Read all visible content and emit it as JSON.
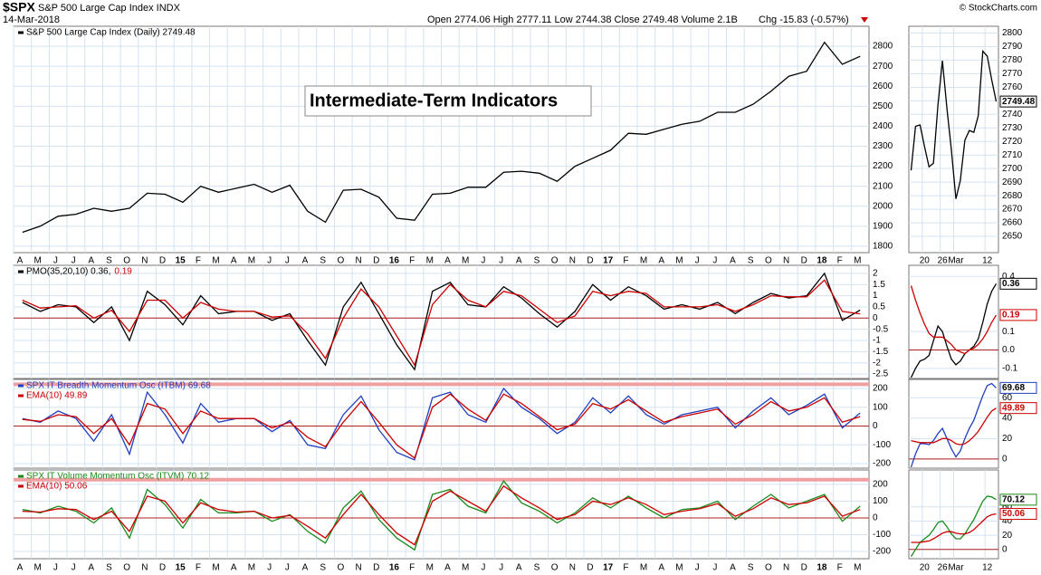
{
  "header": {
    "symbol": "$SPX",
    "name": "S&P 500 Large Cap Index INDX",
    "date": "14-Mar-2018",
    "ohlc": "Open 2774.06 High 2777.11 Low 2744.38 Close 2749.48 Volume 2.1B",
    "change": "Chg -15.83 (-0.57%)",
    "source": "© StockCharts.com",
    "annotation": "Intermediate-Term Indicators"
  },
  "chart_data": [
    {
      "type": "line",
      "categories": [
        "A",
        "M",
        "J",
        "J",
        "A",
        "S",
        "O",
        "N",
        "D",
        "15",
        "F",
        "M",
        "A",
        "M",
        "J",
        "J",
        "A",
        "S",
        "O",
        "N",
        "D",
        "16",
        "F",
        "M",
        "A",
        "M",
        "J",
        "J",
        "A",
        "S",
        "O",
        "N",
        "D",
        "17",
        "F",
        "M",
        "A",
        "M",
        "J",
        "J",
        "A",
        "S",
        "O",
        "N",
        "D",
        "18",
        "F",
        "M"
      ],
      "series": [
        {
          "name": "S&P 500 Large Cap Index (Daily) 2749.48",
          "color": "#000000",
          "values": [
            1870,
            1900,
            1950,
            1960,
            1990,
            1975,
            1990,
            2065,
            2060,
            2020,
            2100,
            2070,
            2090,
            2110,
            2070,
            2105,
            1975,
            1920,
            2080,
            2085,
            2045,
            1940,
            1930,
            2060,
            2065,
            2095,
            2095,
            2170,
            2175,
            2165,
            2125,
            2200,
            2240,
            2280,
            2365,
            2360,
            2385,
            2410,
            2425,
            2470,
            2470,
            2510,
            2575,
            2650,
            2675,
            2820,
            2710,
            2749.48
          ]
        }
      ],
      "ylim": [
        1768,
        2900
      ],
      "yticks": [
        1800,
        1900,
        2000,
        2100,
        2200,
        2300,
        2400,
        2500,
        2600,
        2700,
        2800
      ],
      "grid": true
    },
    {
      "type": "line",
      "series": [
        {
          "name": "PMO(35,20,10) 0.36,",
          "color": "#000000",
          "values": [
            0.7,
            0.3,
            0.6,
            0.5,
            -0.2,
            0.5,
            -1.0,
            1.2,
            0.6,
            -0.3,
            1.0,
            0.2,
            0.3,
            0.3,
            -0.1,
            0.2,
            -1.0,
            -2.1,
            0.5,
            1.6,
            0.2,
            -1.2,
            -2.3,
            1.2,
            1.6,
            0.6,
            0.5,
            1.4,
            0.9,
            0.2,
            -0.4,
            0.3,
            1.5,
            0.8,
            1.4,
            1.0,
            0.4,
            0.6,
            0.4,
            0.7,
            0.2,
            0.7,
            1.1,
            0.9,
            1.0,
            2.0,
            -0.1,
            0.36
          ]
        },
        {
          "name": "0.19",
          "color": "#cc0000",
          "values": [
            0.8,
            0.45,
            0.5,
            0.55,
            0.0,
            0.35,
            -0.6,
            0.8,
            0.8,
            0.0,
            0.7,
            0.4,
            0.3,
            0.3,
            0.05,
            0.1,
            -0.7,
            -1.8,
            0.0,
            1.3,
            0.5,
            -0.8,
            -2.1,
            0.6,
            1.5,
            0.8,
            0.5,
            1.2,
            1.0,
            0.4,
            -0.2,
            0.1,
            1.2,
            1.0,
            1.2,
            1.1,
            0.5,
            0.5,
            0.5,
            0.6,
            0.3,
            0.6,
            1.0,
            0.95,
            0.95,
            1.7,
            0.3,
            0.19
          ]
        }
      ],
      "ylim": [
        -2.7,
        2.36
      ],
      "yticks": [
        -2.5,
        -2,
        -1.5,
        -1,
        -0.5,
        0,
        0.5,
        1,
        1.5,
        2
      ],
      "grid": true,
      "hlines": [
        0
      ]
    },
    {
      "type": "line",
      "series": [
        {
          "name": "SPX IT Breadth Momentum Osc (ITBM) 69.68",
          "color": "#1f3fbf",
          "values": [
            40,
            20,
            80,
            40,
            -80,
            60,
            -150,
            180,
            60,
            -90,
            120,
            20,
            40,
            40,
            -30,
            30,
            -100,
            -120,
            60,
            160,
            -20,
            -140,
            -180,
            150,
            180,
            60,
            20,
            200,
            100,
            40,
            -40,
            20,
            150,
            70,
            160,
            60,
            10,
            60,
            80,
            100,
            -10,
            80,
            150,
            60,
            110,
            170,
            -10,
            69.68
          ]
        },
        {
          "name": "EMA(10) 49.89",
          "color": "#cc0000",
          "values": [
            35,
            25,
            60,
            50,
            -40,
            40,
            -100,
            120,
            90,
            -40,
            80,
            40,
            40,
            40,
            -10,
            20,
            -60,
            -110,
            20,
            130,
            20,
            -100,
            -170,
            100,
            170,
            90,
            30,
            170,
            120,
            50,
            -20,
            10,
            120,
            90,
            140,
            80,
            20,
            50,
            70,
            90,
            10,
            60,
            130,
            80,
            100,
            150,
            20,
            49.89
          ]
        }
      ],
      "ylim": [
        -224,
        248
      ],
      "yticks": [
        -200,
        -100,
        0,
        100,
        200
      ],
      "grid": true,
      "hlines": [
        0,
        222
      ]
    },
    {
      "type": "line",
      "categories": [
        "A",
        "M",
        "J",
        "J",
        "A",
        "S",
        "O",
        "N",
        "D",
        "15",
        "F",
        "M",
        "A",
        "M",
        "J",
        "J",
        "A",
        "S",
        "O",
        "N",
        "D",
        "16",
        "F",
        "M",
        "A",
        "M",
        "J",
        "J",
        "A",
        "S",
        "O",
        "N",
        "D",
        "17",
        "F",
        "M",
        "A",
        "M",
        "J",
        "J",
        "A",
        "S",
        "O",
        "N",
        "D",
        "18",
        "F",
        "M"
      ],
      "series": [
        {
          "name": "SPX IT Volume Momentum Osc (ITVM) 70.12",
          "color": "#1a8a1a",
          "values": [
            50,
            30,
            70,
            40,
            -30,
            60,
            -120,
            170,
            80,
            -60,
            110,
            30,
            30,
            40,
            -20,
            20,
            -80,
            -150,
            60,
            160,
            -10,
            -120,
            -190,
            140,
            170,
            70,
            30,
            220,
            90,
            40,
            -30,
            30,
            120,
            60,
            130,
            60,
            0,
            50,
            60,
            100,
            -10,
            70,
            140,
            60,
            100,
            140,
            -20,
            70.12
          ]
        },
        {
          "name": "EMA(10) 50.06",
          "color": "#cc0000",
          "values": [
            40,
            35,
            55,
            50,
            -10,
            40,
            -80,
            130,
            100,
            -30,
            90,
            50,
            35,
            40,
            0,
            15,
            -50,
            -120,
            20,
            140,
            20,
            -90,
            -160,
            100,
            160,
            100,
            40,
            190,
            120,
            60,
            -10,
            20,
            100,
            80,
            120,
            80,
            20,
            40,
            55,
            85,
            10,
            55,
            120,
            80,
            90,
            130,
            10,
            50.06
          ]
        }
      ],
      "ylim": [
        -243,
        286
      ],
      "yticks": [
        -200,
        -100,
        0,
        100,
        200
      ],
      "grid": true,
      "hlines": [
        0,
        228
      ]
    },
    {
      "type": "line",
      "categories": [
        null,
        null,
        null,
        "20",
        null,
        null,
        null,
        "26",
        null,
        null,
        "Mar",
        null,
        null,
        null,
        null,
        null,
        null,
        "12",
        null,
        null
      ],
      "series": [
        {
          "color": "#000000",
          "values": [
            2698.63,
            2731.2,
            2732.22,
            2716.26,
            2701.33,
            2703.96,
            2747.3,
            2779.6,
            2744.28,
            2713.83,
            2677.67,
            2691.25,
            2720.94,
            2728.12,
            2726.8,
            2738.97,
            2786.57,
            2783.02,
            2765.31,
            2749.48
          ]
        }
      ],
      "ylim": [
        2638,
        2805
      ],
      "yticks": [
        2650,
        2660,
        2670,
        2680,
        2690,
        2700,
        2710,
        2720,
        2730,
        2740,
        2750,
        2760,
        2770,
        2780,
        2790,
        2800
      ],
      "grid": true
    },
    {
      "type": "line",
      "series": [
        {
          "color": "#000000",
          "values": [
            -0.15,
            -0.1,
            -0.06,
            -0.05,
            -0.03,
            0.05,
            0.13,
            0.1,
            0.02,
            -0.05,
            -0.08,
            -0.06,
            -0.02,
            0.0,
            0.02,
            0.06,
            0.15,
            0.25,
            0.32,
            0.36
          ]
        },
        {
          "color": "#cc0000",
          "values": [
            0.35,
            0.27,
            0.2,
            0.14,
            0.09,
            0.07,
            0.07,
            0.07,
            0.05,
            0.03,
            0.0,
            -0.01,
            -0.02,
            0.0,
            0.01,
            0.03,
            0.06,
            0.1,
            0.15,
            0.19
          ]
        }
      ],
      "ylim": [
        -0.155,
        0.46
      ],
      "yticks": [
        0.4,
        0.1,
        {
          "value": 0,
          "label": "0.0"
        },
        -0.1
      ],
      "grid": true,
      "hlines": [
        0
      ]
    },
    {
      "type": "line",
      "series": [
        {
          "color": "#1f3fbf",
          "values": [
            -8,
            5,
            15,
            15,
            14,
            18,
            25,
            30,
            20,
            10,
            2,
            8,
            20,
            30,
            38,
            50,
            62,
            72,
            74,
            69.68
          ]
        },
        {
          "color": "#cc0000",
          "values": [
            18,
            17,
            16,
            16,
            16,
            16,
            18,
            20,
            20,
            18,
            15,
            14,
            15,
            18,
            22,
            27,
            34,
            41,
            47,
            49.89
          ]
        }
      ],
      "ylim": [
        -9,
        78
      ],
      "yticks": [
        60,
        40,
        20,
        0
      ],
      "grid": true,
      "hlines": [
        0
      ]
    },
    {
      "type": "line",
      "categories": [
        null,
        null,
        null,
        "20",
        null,
        null,
        null,
        "26",
        null,
        null,
        "Mar",
        null,
        null,
        null,
        null,
        null,
        null,
        "12",
        null,
        null
      ],
      "series": [
        {
          "color": "#1a8a1a",
          "values": [
            -10,
            0,
            10,
            15,
            20,
            28,
            38,
            40,
            32,
            22,
            15,
            15,
            22,
            32,
            42,
            55,
            68,
            75,
            74,
            70.12
          ]
        },
        {
          "color": "#cc0000",
          "values": [
            10,
            10,
            10,
            11,
            12,
            15,
            19,
            23,
            25,
            25,
            23,
            22,
            22,
            24,
            28,
            34,
            40,
            46,
            49,
            50.06
          ]
        }
      ],
      "ylim": [
        -13,
        112
      ],
      "yticks": [
        60,
        40,
        20,
        0
      ],
      "grid": true,
      "hlines": [
        0
      ]
    }
  ]
}
